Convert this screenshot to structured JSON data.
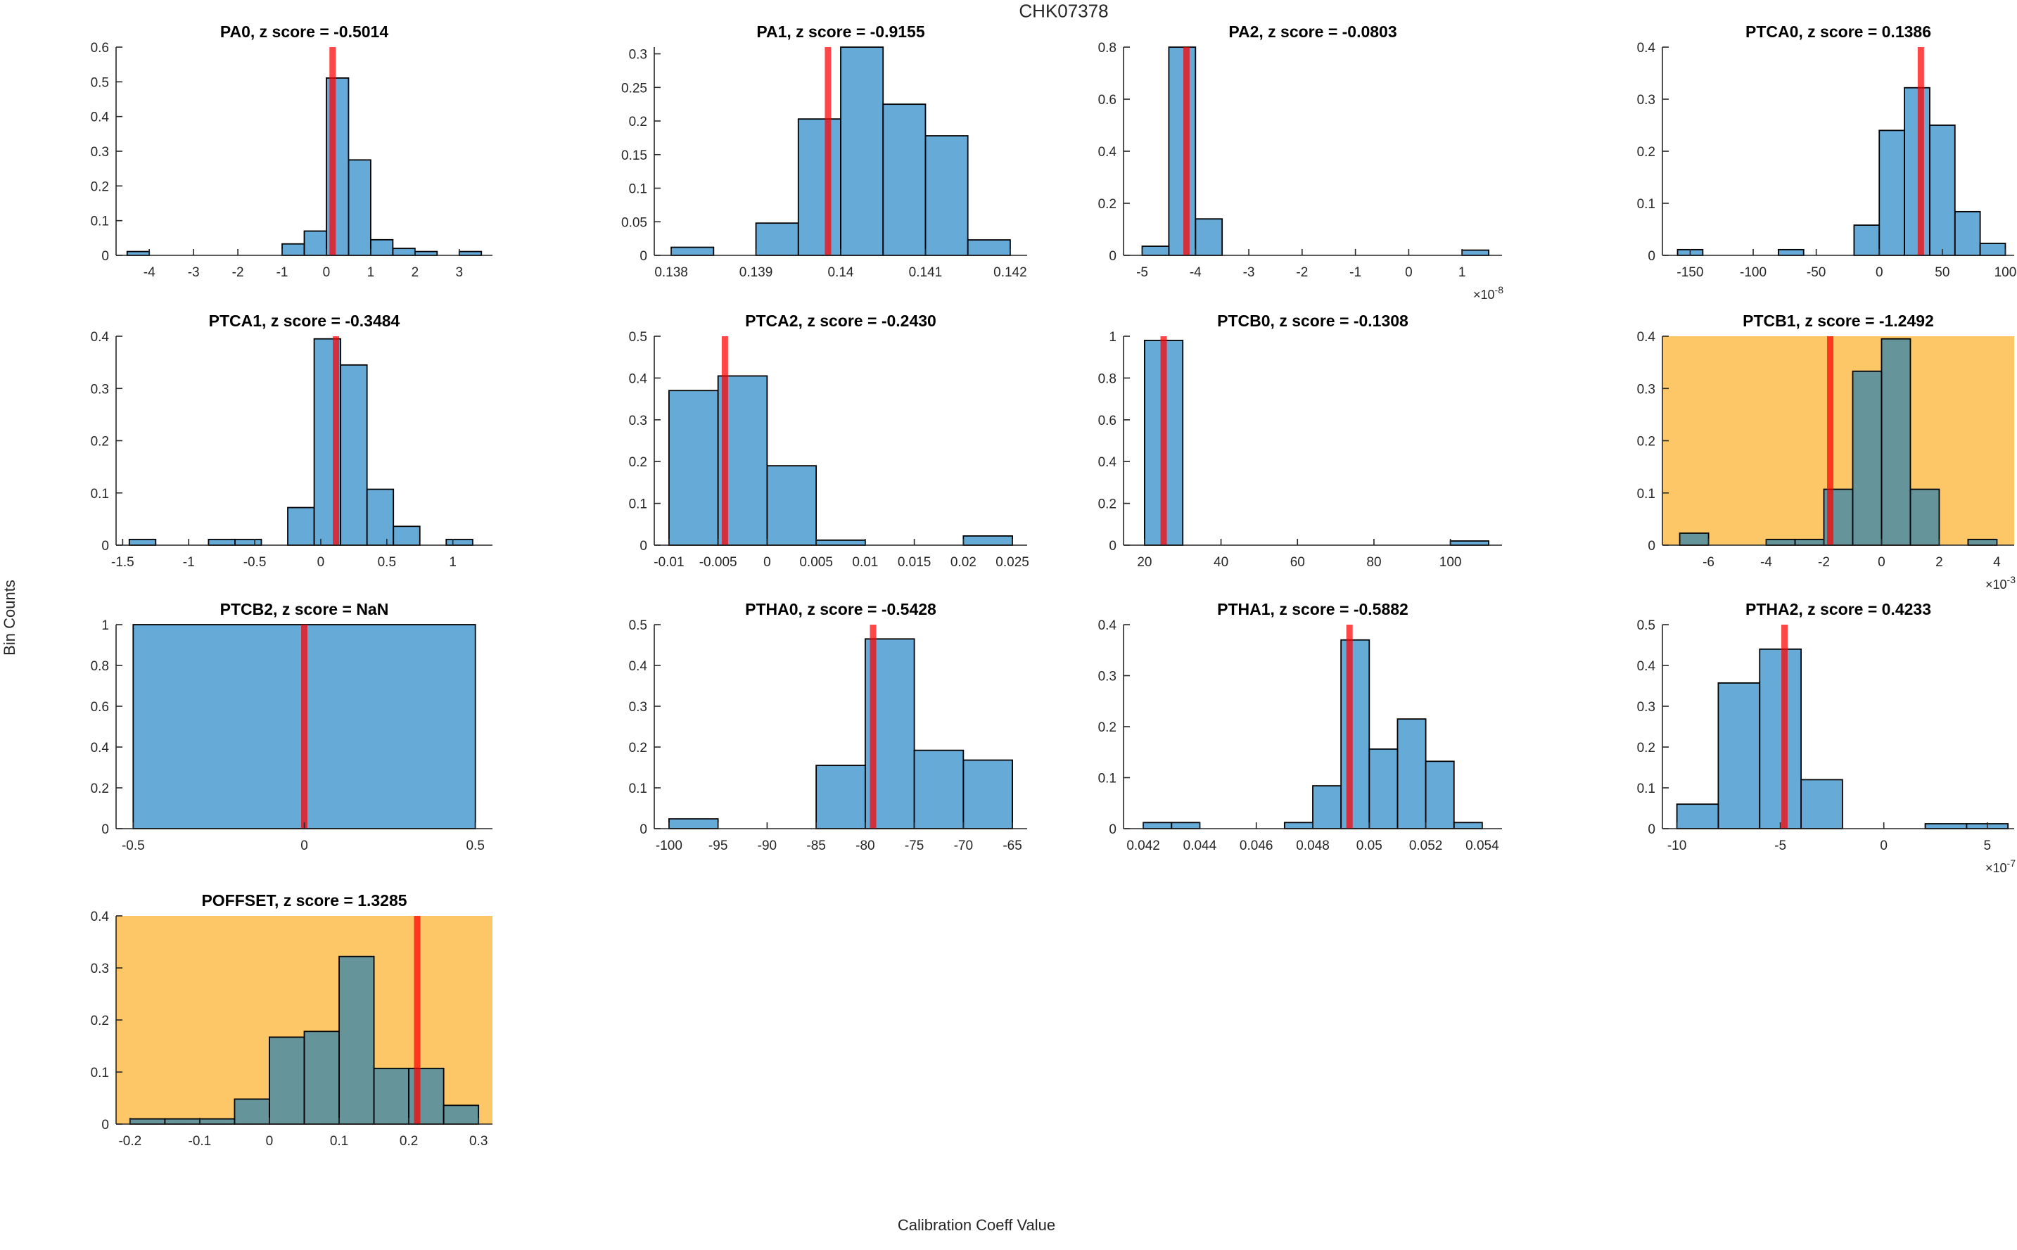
{
  "figure": {
    "title": "CHK07378",
    "xlabel": "Calibration Coeff Value",
    "ylabel": "Bin Counts"
  },
  "colors": {
    "bar_fill": "rgba(0,114,189,0.6)",
    "bar_edge": "#000000",
    "ref_line": "rgba(255,0,0,0.72)",
    "highlight_bg": "#FDC768",
    "axis": "#262626",
    "text": "#262626"
  },
  "chart_data": [
    {
      "name": "PA0",
      "type": "bar",
      "title": "PA0, z score = -0.5014",
      "z_score": -0.5014,
      "highlighted": false,
      "grid": {
        "row": 0,
        "col": 0
      },
      "xlim": [
        -4.75,
        3.75
      ],
      "ylim": [
        0,
        0.6
      ],
      "xtick_values": [
        -4,
        -3,
        -2,
        -1,
        0,
        1,
        2,
        3
      ],
      "xtick_labels": [
        "-4",
        "-3",
        "-2",
        "-1",
        "0",
        "1",
        "2",
        "3"
      ],
      "ytick_values": [
        0,
        0.1,
        0.2,
        0.3,
        0.4,
        0.5,
        0.6
      ],
      "ytick_labels": [
        "0",
        "0.1",
        "0.2",
        "0.3",
        "0.4",
        "0.5",
        "0.6"
      ],
      "x_exponent": null,
      "bars": [
        [
          -4.5,
          -4,
          0.011
        ],
        [
          -1,
          -0.5,
          0.033
        ],
        [
          -0.5,
          0,
          0.07
        ],
        [
          0,
          0.5,
          0.511
        ],
        [
          0.5,
          1,
          0.275
        ],
        [
          1,
          1.5,
          0.045
        ],
        [
          1.5,
          2,
          0.02
        ],
        [
          2,
          2.5,
          0.011
        ],
        [
          3,
          3.5,
          0.011
        ]
      ],
      "ref_line_x": 0.14
    },
    {
      "name": "PA1",
      "type": "bar",
      "title": "PA1, z score = -0.9155",
      "z_score": -0.9155,
      "highlighted": false,
      "grid": {
        "row": 0,
        "col": 1
      },
      "xlim": [
        0.1378,
        0.1422
      ],
      "ylim": [
        0,
        0.31
      ],
      "xtick_values": [
        0.138,
        0.139,
        0.14,
        0.141,
        0.142
      ],
      "xtick_labels": [
        "0.138",
        "0.139",
        "0.14",
        "0.141",
        "0.142"
      ],
      "ytick_values": [
        0,
        0.05,
        0.1,
        0.15,
        0.2,
        0.25,
        0.3
      ],
      "ytick_labels": [
        "0",
        "0.05",
        "0.1",
        "0.15",
        "0.2",
        "0.25",
        "0.3"
      ],
      "x_exponent": null,
      "bars": [
        [
          0.138,
          0.1385,
          0.012
        ],
        [
          0.139,
          0.1395,
          0.048
        ],
        [
          0.1395,
          0.14,
          0.203
        ],
        [
          0.14,
          0.1405,
          0.31
        ],
        [
          0.1405,
          0.141,
          0.225
        ],
        [
          0.141,
          0.1415,
          0.178
        ],
        [
          0.1415,
          0.142,
          0.023
        ]
      ],
      "ref_line_x": 0.13985
    },
    {
      "name": "PA2",
      "type": "bar",
      "title": "PA2, z score = -0.0803",
      "z_score": -0.0803,
      "highlighted": false,
      "grid": {
        "row": 0,
        "col": 2
      },
      "xlim": [
        -5.35,
        1.75
      ],
      "ylim": [
        0,
        0.8
      ],
      "xtick_values": [
        -5,
        -4,
        -3,
        -2,
        -1,
        0,
        1
      ],
      "xtick_labels": [
        "-5",
        "-4",
        "-3",
        "-2",
        "-1",
        "0",
        "1"
      ],
      "ytick_values": [
        0,
        0.2,
        0.4,
        0.6,
        0.8
      ],
      "ytick_labels": [
        "0",
        "0.2",
        "0.4",
        "0.6",
        "0.8"
      ],
      "x_exponent": -8,
      "bars": [
        [
          -5,
          -4.5,
          0.035
        ],
        [
          -4.5,
          -4,
          0.8
        ],
        [
          -4,
          -3.5,
          0.14
        ],
        [
          1,
          1.5,
          0.02
        ]
      ],
      "ref_line_x": -4.17
    },
    {
      "name": "PTCA0",
      "type": "bar",
      "title": "PTCA0, z score = 0.1386",
      "z_score": 0.1386,
      "highlighted": false,
      "grid": {
        "row": 0,
        "col": 3
      },
      "xlim": [
        -172,
        107
      ],
      "ylim": [
        0,
        0.4
      ],
      "xtick_values": [
        -150,
        -100,
        -50,
        0,
        50,
        100
      ],
      "xtick_labels": [
        "-150",
        "-100",
        "-50",
        "0",
        "50",
        "100"
      ],
      "ytick_values": [
        0,
        0.1,
        0.2,
        0.3,
        0.4
      ],
      "ytick_labels": [
        "0",
        "0.1",
        "0.2",
        "0.3",
        "0.4"
      ],
      "x_exponent": null,
      "bars": [
        [
          -160,
          -140,
          0.011
        ],
        [
          -80,
          -60,
          0.011
        ],
        [
          -20,
          0,
          0.058
        ],
        [
          0,
          20,
          0.24
        ],
        [
          20,
          40,
          0.322
        ],
        [
          40,
          60,
          0.25
        ],
        [
          60,
          80,
          0.084
        ],
        [
          80,
          100,
          0.023
        ]
      ],
      "ref_line_x": 33
    },
    {
      "name": "PTCA1",
      "type": "bar",
      "title": "PTCA1, z score = -0.3484",
      "z_score": -0.3484,
      "highlighted": false,
      "grid": {
        "row": 1,
        "col": 0
      },
      "xlim": [
        -1.55,
        1.3
      ],
      "ylim": [
        0,
        0.4
      ],
      "xtick_values": [
        -1.5,
        -1,
        -0.5,
        0,
        0.5,
        1
      ],
      "xtick_labels": [
        "-1.5",
        "-1",
        "-0.5",
        "0",
        "0.5",
        "1"
      ],
      "ytick_values": [
        0,
        0.1,
        0.2,
        0.3,
        0.4
      ],
      "ytick_labels": [
        "0",
        "0.1",
        "0.2",
        "0.3",
        "0.4"
      ],
      "x_exponent": null,
      "bars": [
        [
          -1.45,
          -1.25,
          0.011
        ],
        [
          -0.85,
          -0.65,
          0.011
        ],
        [
          -0.65,
          -0.45,
          0.011
        ],
        [
          -0.25,
          -0.05,
          0.072
        ],
        [
          -0.05,
          0.15,
          0.395
        ],
        [
          0.15,
          0.35,
          0.345
        ],
        [
          0.35,
          0.55,
          0.107
        ],
        [
          0.55,
          0.75,
          0.036
        ],
        [
          0.95,
          1.15,
          0.011
        ]
      ],
      "ref_line_x": 0.115
    },
    {
      "name": "PTCA2",
      "type": "bar",
      "title": "PTCA2, z score = -0.2430",
      "z_score": -0.243,
      "highlighted": false,
      "grid": {
        "row": 1,
        "col": 1
      },
      "xlim": [
        -0.0115,
        0.0265
      ],
      "ylim": [
        0,
        0.5
      ],
      "xtick_values": [
        -0.01,
        -0.005,
        0,
        0.005,
        0.01,
        0.015,
        0.02,
        0.025
      ],
      "xtick_labels": [
        "-0.01",
        "-0.005",
        "0",
        "0.005",
        "0.01",
        "0.015",
        "0.02",
        "0.025"
      ],
      "ytick_values": [
        0,
        0.1,
        0.2,
        0.3,
        0.4,
        0.5
      ],
      "ytick_labels": [
        "0",
        "0.1",
        "0.2",
        "0.3",
        "0.4",
        "0.5"
      ],
      "x_exponent": null,
      "bars": [
        [
          -0.01,
          -0.005,
          0.37
        ],
        [
          -0.005,
          0,
          0.405
        ],
        [
          0,
          0.005,
          0.19
        ],
        [
          0.005,
          0.01,
          0.012
        ],
        [
          0.02,
          0.025,
          0.022
        ]
      ],
      "ref_line_x": -0.0043
    },
    {
      "name": "PTCB0",
      "type": "bar",
      "title": "PTCB0, z score = -0.1308",
      "z_score": -0.1308,
      "highlighted": false,
      "grid": {
        "row": 1,
        "col": 2
      },
      "xlim": [
        14.5,
        113.5
      ],
      "ylim": [
        0,
        1
      ],
      "xtick_values": [
        20,
        40,
        60,
        80,
        100
      ],
      "xtick_labels": [
        "20",
        "40",
        "60",
        "80",
        "100"
      ],
      "ytick_values": [
        0,
        0.2,
        0.4,
        0.6,
        0.8,
        1
      ],
      "ytick_labels": [
        "0",
        "0.2",
        "0.4",
        "0.6",
        "0.8",
        "1"
      ],
      "x_exponent": null,
      "bars": [
        [
          20,
          30,
          0.98
        ],
        [
          100,
          110,
          0.02
        ]
      ],
      "ref_line_x": 25
    },
    {
      "name": "PTCB1",
      "type": "bar",
      "title": "PTCB1, z score = -1.2492",
      "z_score": -1.2492,
      "highlighted": true,
      "grid": {
        "row": 1,
        "col": 3
      },
      "xlim": [
        -7.6,
        4.6
      ],
      "ylim": [
        0,
        0.4
      ],
      "xtick_values": [
        -6,
        -4,
        -2,
        0,
        2,
        4
      ],
      "xtick_labels": [
        "-6",
        "-4",
        "-2",
        "0",
        "2",
        "4"
      ],
      "ytick_values": [
        0,
        0.1,
        0.2,
        0.3,
        0.4
      ],
      "ytick_labels": [
        "0",
        "0.1",
        "0.2",
        "0.3",
        "0.4"
      ],
      "x_exponent": -3,
      "bars": [
        [
          -7,
          -6,
          0.023
        ],
        [
          -4,
          -3,
          0.011
        ],
        [
          -3,
          -2,
          0.011
        ],
        [
          -2,
          -1,
          0.107
        ],
        [
          -1,
          0,
          0.333
        ],
        [
          0,
          1,
          0.395
        ],
        [
          1,
          2,
          0.107
        ],
        [
          3,
          4,
          0.011
        ]
      ],
      "ref_line_x": -1.78
    },
    {
      "name": "PTCB2",
      "type": "bar",
      "title": "PTCB2, z score = NaN",
      "z_score": null,
      "highlighted": false,
      "grid": {
        "row": 2,
        "col": 0
      },
      "xlim": [
        -0.55,
        0.55
      ],
      "ylim": [
        0,
        1
      ],
      "xtick_values": [
        -0.5,
        0,
        0.5
      ],
      "xtick_labels": [
        "-0.5",
        "0",
        "0.5"
      ],
      "ytick_values": [
        0,
        0.2,
        0.4,
        0.6,
        0.8,
        1
      ],
      "ytick_labels": [
        "0",
        "0.2",
        "0.4",
        "0.6",
        "0.8",
        "1"
      ],
      "x_exponent": null,
      "bars": [
        [
          -0.5,
          0.5,
          1
        ]
      ],
      "ref_line_x": 0
    },
    {
      "name": "PTHA0",
      "type": "bar",
      "title": "PTHA0, z score = -0.5428",
      "z_score": -0.5428,
      "highlighted": false,
      "grid": {
        "row": 2,
        "col": 1
      },
      "xlim": [
        -101.5,
        -63.5
      ],
      "ylim": [
        0,
        0.5
      ],
      "xtick_values": [
        -100,
        -95,
        -90,
        -85,
        -80,
        -75,
        -70,
        -65
      ],
      "xtick_labels": [
        "-100",
        "-95",
        "-90",
        "-85",
        "-80",
        "-75",
        "-70",
        "-65"
      ],
      "ytick_values": [
        0,
        0.1,
        0.2,
        0.3,
        0.4,
        0.5
      ],
      "ytick_labels": [
        "0",
        "0.1",
        "0.2",
        "0.3",
        "0.4",
        "0.5"
      ],
      "x_exponent": null,
      "bars": [
        [
          -100,
          -95,
          0.024
        ],
        [
          -85,
          -80,
          0.155
        ],
        [
          -80,
          -75,
          0.465
        ],
        [
          -75,
          -70,
          0.192
        ],
        [
          -70,
          -65,
          0.168
        ]
      ],
      "ref_line_x": -79.2
    },
    {
      "name": "PTHA1",
      "type": "bar",
      "title": "PTHA1, z score = -0.5882",
      "z_score": -0.5882,
      "highlighted": false,
      "grid": {
        "row": 2,
        "col": 2
      },
      "xlim": [
        0.0413,
        0.0547
      ],
      "ylim": [
        0,
        0.4
      ],
      "xtick_values": [
        0.042,
        0.044,
        0.046,
        0.048,
        0.05,
        0.052,
        0.054
      ],
      "xtick_labels": [
        "0.042",
        "0.044",
        "0.046",
        "0.048",
        "0.05",
        "0.052",
        "0.054"
      ],
      "ytick_values": [
        0,
        0.1,
        0.2,
        0.3,
        0.4
      ],
      "ytick_labels": [
        "0",
        "0.1",
        "0.2",
        "0.3",
        "0.4"
      ],
      "x_exponent": null,
      "bars": [
        [
          0.042,
          0.043,
          0.012
        ],
        [
          0.043,
          0.044,
          0.012
        ],
        [
          0.047,
          0.048,
          0.012
        ],
        [
          0.048,
          0.049,
          0.084
        ],
        [
          0.049,
          0.05,
          0.37
        ],
        [
          0.05,
          0.051,
          0.156
        ],
        [
          0.051,
          0.052,
          0.215
        ],
        [
          0.052,
          0.053,
          0.132
        ],
        [
          0.053,
          0.054,
          0.012
        ]
      ],
      "ref_line_x": 0.0493
    },
    {
      "name": "PTHA2",
      "type": "bar",
      "title": "PTHA2, z score = 0.4233",
      "z_score": 0.4233,
      "highlighted": false,
      "grid": {
        "row": 2,
        "col": 3
      },
      "xlim": [
        -10.7,
        6.3
      ],
      "ylim": [
        0,
        0.5
      ],
      "xtick_values": [
        -10,
        -5,
        0,
        5
      ],
      "xtick_labels": [
        "-10",
        "-5",
        "0",
        "5"
      ],
      "ytick_values": [
        0,
        0.1,
        0.2,
        0.3,
        0.4,
        0.5
      ],
      "ytick_labels": [
        "0",
        "0.1",
        "0.2",
        "0.3",
        "0.4",
        "0.5"
      ],
      "x_exponent": -7,
      "bars": [
        [
          -10,
          -8,
          0.06
        ],
        [
          -8,
          -6,
          0.357
        ],
        [
          -6,
          -4,
          0.44
        ],
        [
          -4,
          -2,
          0.12
        ],
        [
          2,
          4,
          0.012
        ],
        [
          4,
          6,
          0.012
        ]
      ],
      "ref_line_x": -4.8
    },
    {
      "name": "POFFSET",
      "type": "bar",
      "title": "POFFSET, z score = 1.3285",
      "z_score": 1.3285,
      "highlighted": true,
      "grid": {
        "row": 3,
        "col": 0
      },
      "xlim": [
        -0.22,
        0.32
      ],
      "ylim": [
        0,
        0.4
      ],
      "xtick_values": [
        -0.2,
        -0.1,
        0,
        0.1,
        0.2,
        0.3
      ],
      "xtick_labels": [
        "-0.2",
        "-0.1",
        "0",
        "0.1",
        "0.2",
        "0.3"
      ],
      "ytick_values": [
        0,
        0.1,
        0.2,
        0.3,
        0.4
      ],
      "ytick_labels": [
        "0",
        "0.1",
        "0.2",
        "0.3",
        "0.4"
      ],
      "x_exponent": null,
      "bars": [
        [
          -0.2,
          -0.15,
          0.01
        ],
        [
          -0.15,
          -0.1,
          0.01
        ],
        [
          -0.1,
          -0.05,
          0.01
        ],
        [
          -0.05,
          0,
          0.048
        ],
        [
          0,
          0.05,
          0.167
        ],
        [
          0.05,
          0.1,
          0.178
        ],
        [
          0.1,
          0.15,
          0.322
        ],
        [
          0.15,
          0.2,
          0.107
        ],
        [
          0.2,
          0.25,
          0.107
        ],
        [
          0.25,
          0.3,
          0.036
        ]
      ],
      "ref_line_x": 0.212
    }
  ]
}
